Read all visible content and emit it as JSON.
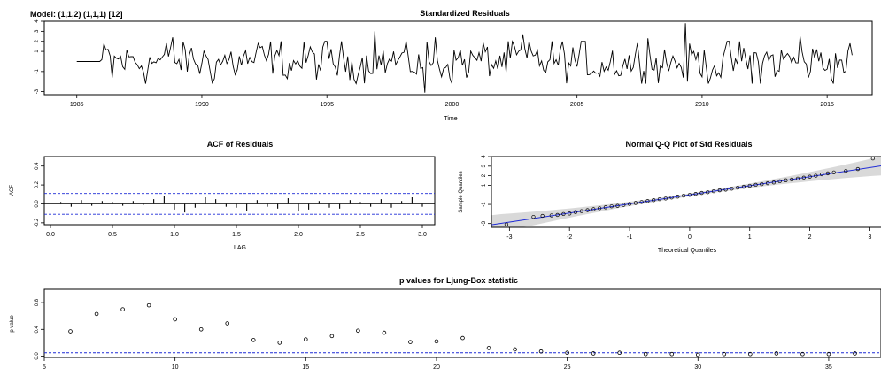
{
  "model_label": "Model: (1,1,2) (1,1,1) [12]",
  "chart_data": [
    {
      "id": "residuals",
      "type": "line",
      "title": "Standardized Residuals",
      "xlabel": "Time",
      "ylabel": "",
      "xlim": [
        1983.7,
        2016.8
      ],
      "ylim": [
        -3.3,
        4.0
      ],
      "x_ticks": [
        1985,
        1990,
        1995,
        2000,
        2005,
        2010,
        2015
      ],
      "y_ticks": [
        -3,
        -1,
        1,
        2,
        3,
        4
      ],
      "y_tick_labels": [
        "-3",
        "-1",
        "1",
        "2",
        "3",
        "4"
      ],
      "series_start": 1985.0,
      "series_end": 2016.0,
      "flat_until": 1986.0,
      "flat_value": 0.0,
      "highlights": [
        {
          "x": 1986.4,
          "y": -1.6
        },
        {
          "x": 1988.8,
          "y": 2.4
        },
        {
          "x": 1996.9,
          "y": 3.0
        },
        {
          "x": 1998.9,
          "y": -3.1
        },
        {
          "x": 1999.3,
          "y": 2.4
        },
        {
          "x": 2002.8,
          "y": 2.7
        },
        {
          "x": 2007.8,
          "y": 2.3
        },
        {
          "x": 2009.3,
          "y": 3.8
        },
        {
          "x": 2009.45,
          "y": -2.0
        },
        {
          "x": 2012.0,
          "y": -2.2
        },
        {
          "x": 2013.9,
          "y": 2.5
        },
        {
          "x": 2015.9,
          "y": 1.8
        }
      ],
      "colors": {
        "line": "#000000"
      }
    },
    {
      "id": "acf",
      "type": "bar",
      "title": "ACF of Residuals",
      "xlabel": "LAG",
      "ylabel": "ACF",
      "xlim": [
        -0.05,
        3.1
      ],
      "ylim": [
        -0.22,
        0.5
      ],
      "x_ticks": [
        0.0,
        0.5,
        1.0,
        1.5,
        2.0,
        2.5,
        3.0
      ],
      "x_tick_labels": [
        "0.0",
        "0.5",
        "1.0",
        "1.5",
        "2.0",
        "2.5",
        "3.0"
      ],
      "y_ticks": [
        -0.2,
        0.0,
        0.2,
        0.4
      ],
      "y_tick_labels": [
        "-0.2",
        "0.0",
        "0.2",
        "0.4"
      ],
      "lags": [
        0.083,
        0.167,
        0.25,
        0.333,
        0.417,
        0.5,
        0.583,
        0.667,
        0.75,
        0.833,
        0.917,
        1.0,
        1.083,
        1.167,
        1.25,
        1.333,
        1.417,
        1.5,
        1.583,
        1.667,
        1.75,
        1.833,
        1.917,
        2.0,
        2.083,
        2.167,
        2.25,
        2.333,
        2.417,
        2.5,
        2.583,
        2.667,
        2.75,
        2.833,
        2.917,
        3.0
      ],
      "values": [
        0.02,
        -0.03,
        0.04,
        -0.02,
        0.03,
        0.02,
        -0.02,
        0.03,
        -0.01,
        0.05,
        0.08,
        -0.06,
        -0.09,
        -0.04,
        0.07,
        0.05,
        -0.03,
        -0.04,
        -0.07,
        0.04,
        -0.03,
        -0.05,
        0.06,
        -0.08,
        -0.06,
        0.03,
        -0.04,
        -0.05,
        0.04,
        0.02,
        -0.03,
        0.05,
        -0.04,
        0.03,
        0.07,
        -0.03
      ],
      "conf_bound": 0.11,
      "colors": {
        "bars": "#000000",
        "bounds": "#1f2bd6",
        "zero": "#000000"
      }
    },
    {
      "id": "qq",
      "type": "scatter",
      "title": "Normal Q-Q Plot of Std Residuals",
      "xlabel": "Theoretical Quantiles",
      "ylabel": "Sample Quantiles",
      "xlim": [
        -3.3,
        3.2
      ],
      "ylim": [
        -3.4,
        4.0
      ],
      "x_ticks": [
        -3,
        -2,
        -1,
        0,
        1,
        2,
        3
      ],
      "y_ticks": [
        -3,
        -1,
        1,
        2,
        3,
        4
      ],
      "y_tick_labels": [
        "-3",
        "-1",
        "1",
        "2",
        "3",
        "4"
      ],
      "reference_line": {
        "intercept": 0.0,
        "slope": 0.95
      },
      "band_halfwidth_center": 0.15,
      "band_halfwidth_tails": 1.0,
      "x_points": [
        -3.05,
        -2.6,
        -2.45,
        -2.3,
        -2.2,
        -2.1,
        -2.0,
        -1.9,
        -1.8,
        -1.7,
        -1.6,
        -1.5,
        -1.4,
        -1.3,
        -1.2,
        -1.1,
        -1.0,
        -0.9,
        -0.8,
        -0.7,
        -0.6,
        -0.5,
        -0.4,
        -0.3,
        -0.2,
        -0.1,
        0.0,
        0.1,
        0.2,
        0.3,
        0.4,
        0.5,
        0.6,
        0.7,
        0.8,
        0.9,
        1.0,
        1.1,
        1.2,
        1.3,
        1.4,
        1.5,
        1.6,
        1.7,
        1.8,
        1.9,
        2.0,
        2.1,
        2.2,
        2.3,
        2.4,
        2.6,
        2.8,
        3.05
      ],
      "y_points": [
        -3.1,
        -2.3,
        -2.2,
        -2.15,
        -2.1,
        -2.0,
        -1.95,
        -1.8,
        -1.7,
        -1.6,
        -1.5,
        -1.4,
        -1.3,
        -1.2,
        -1.15,
        -1.05,
        -0.95,
        -0.85,
        -0.75,
        -0.65,
        -0.55,
        -0.45,
        -0.38,
        -0.28,
        -0.18,
        -0.08,
        0.0,
        0.1,
        0.2,
        0.28,
        0.38,
        0.48,
        0.55,
        0.65,
        0.75,
        0.85,
        0.95,
        1.05,
        1.12,
        1.22,
        1.3,
        1.42,
        1.52,
        1.6,
        1.7,
        1.8,
        1.9,
        2.0,
        2.15,
        2.25,
        2.35,
        2.5,
        2.7,
        3.8
      ],
      "colors": {
        "points": "#000000",
        "line": "#1f2bd6",
        "band": "#d9d9d9"
      }
    },
    {
      "id": "ljung",
      "type": "scatter",
      "title": "p values for Ljung-Box statistic",
      "xlabel": "",
      "ylabel": "p value",
      "xlim": [
        5,
        37
      ],
      "ylim": [
        -0.02,
        1.0
      ],
      "x_ticks": [
        5,
        10,
        15,
        20,
        25,
        30,
        35
      ],
      "y_ticks": [
        0.0,
        0.4,
        0.8
      ],
      "y_tick_labels": [
        "0.0",
        "0.4",
        "0.8"
      ],
      "x": [
        6,
        7,
        8,
        9,
        10,
        11,
        12,
        13,
        14,
        15,
        16,
        17,
        18,
        19,
        20,
        21,
        22,
        23,
        24,
        25,
        26,
        27,
        28,
        29,
        30,
        31,
        32,
        33,
        34,
        35,
        36
      ],
      "values": [
        0.37,
        0.63,
        0.7,
        0.76,
        0.55,
        0.4,
        0.49,
        0.24,
        0.2,
        0.25,
        0.3,
        0.38,
        0.35,
        0.21,
        0.22,
        0.27,
        0.12,
        0.1,
        0.07,
        0.05,
        0.04,
        0.05,
        0.03,
        0.03,
        0.02,
        0.03,
        0.03,
        0.04,
        0.03,
        0.03,
        0.04
      ],
      "threshold": 0.05,
      "colors": {
        "points": "#000000",
        "threshold": "#1f2bd6"
      }
    }
  ]
}
